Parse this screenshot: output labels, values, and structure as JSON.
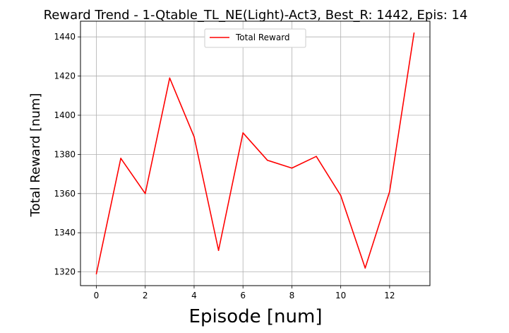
{
  "chart_data": {
    "type": "line",
    "title": "Reward Trend - 1-Qtable_TL_NE(Light)-Act3, Best_R: 1442, Epis: 14",
    "xlabel": "Episode [num]",
    "ylabel": "Total Reward [num]",
    "xlim": [
      -0.65,
      13.65
    ],
    "ylim": [
      1313,
      1448
    ],
    "xticks": [
      0,
      2,
      4,
      6,
      8,
      10,
      12
    ],
    "yticks": [
      1320,
      1340,
      1360,
      1380,
      1400,
      1420,
      1440
    ],
    "grid": true,
    "legend_position": "top-center",
    "series": [
      {
        "name": "Total Reward",
        "color": "#ff0000",
        "x": [
          0,
          1,
          2,
          3,
          4,
          5,
          6,
          7,
          8,
          9,
          10,
          11,
          12,
          13
        ],
        "y": [
          1319,
          1378,
          1360,
          1419,
          1389,
          1331,
          1391,
          1377,
          1373,
          1379,
          1359,
          1322,
          1361,
          1442
        ]
      }
    ]
  }
}
